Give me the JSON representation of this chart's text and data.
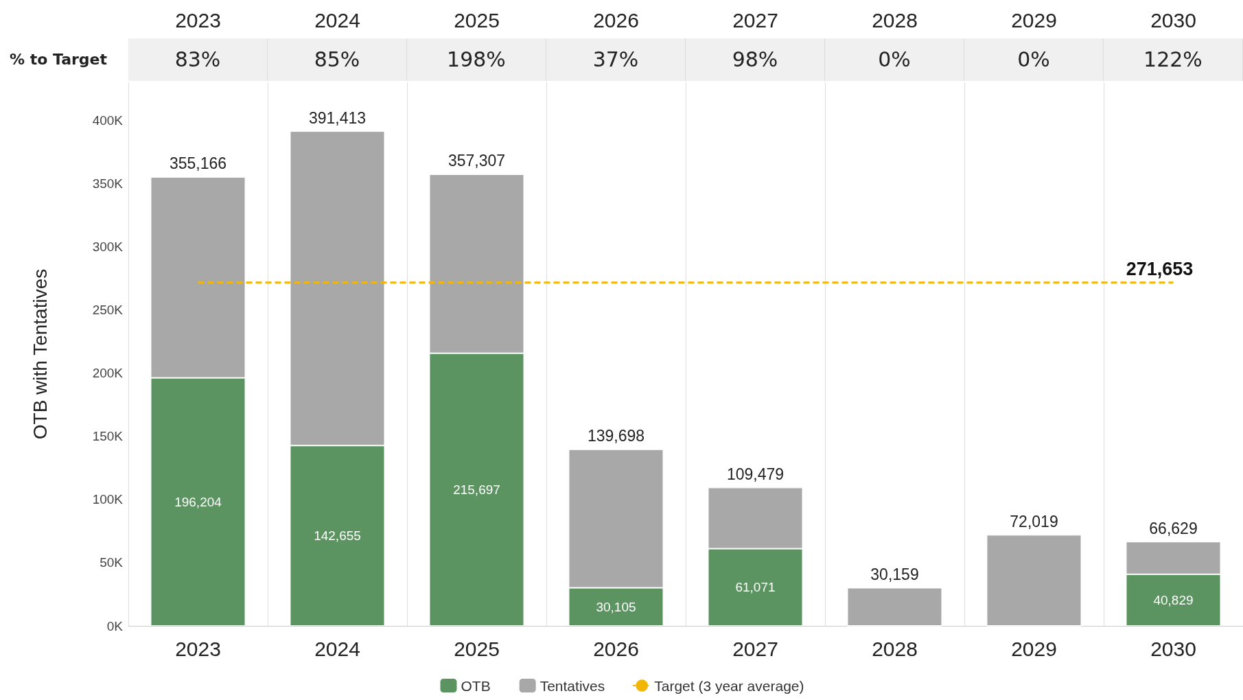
{
  "chart_data": {
    "type": "bar",
    "stacked": true,
    "ylabel": "OTB with Tentatives",
    "categories": [
      "2023",
      "2024",
      "2025",
      "2026",
      "2027",
      "2028",
      "2029",
      "2030"
    ],
    "series": [
      {
        "name": "OTB",
        "color": "#5b9461",
        "values": [
          196204,
          142655,
          215697,
          30105,
          61071,
          0,
          0,
          40829
        ],
        "value_labels": [
          "196,204",
          "142,655",
          "215,697",
          "30,105",
          "61,071",
          null,
          null,
          "40,829"
        ]
      },
      {
        "name": "Tentatives",
        "color": "#a8a8a8",
        "values": [
          158962,
          248758,
          141610,
          109593,
          48408,
          30159,
          72019,
          25800
        ]
      },
      {
        "name": "Target (3 year average)",
        "type": "line",
        "color": "#f2b705",
        "line_style": "dashed",
        "marker": "none",
        "values": [
          271653,
          271653,
          271653,
          271653,
          271653,
          271653,
          271653,
          271653
        ],
        "value_labels": [
          null,
          null,
          null,
          null,
          null,
          null,
          null,
          "271,653"
        ]
      }
    ],
    "totals": [
      "355,166",
      "391,413",
      "357,307",
      "139,698",
      "109,479",
      "30,159",
      "72,019",
      "66,629"
    ],
    "annotations": [
      "% to Target",
      "83%",
      "85%",
      "198%",
      "37%",
      "98%",
      "0%",
      "0%",
      "122%"
    ],
    "ylim": [
      0,
      430000
    ],
    "yticks": [
      {
        "value": 0,
        "label": "0K"
      },
      {
        "value": 50000,
        "label": "50K"
      },
      {
        "value": 100000,
        "label": "100K"
      },
      {
        "value": 150000,
        "label": "150K"
      },
      {
        "value": 200000,
        "label": "200K"
      },
      {
        "value": 250000,
        "label": "250K"
      },
      {
        "value": 300000,
        "label": "300K"
      },
      {
        "value": 350000,
        "label": "350K"
      },
      {
        "value": 400000,
        "label": "400K"
      }
    ],
    "grid": "x",
    "legend": "bottom"
  }
}
